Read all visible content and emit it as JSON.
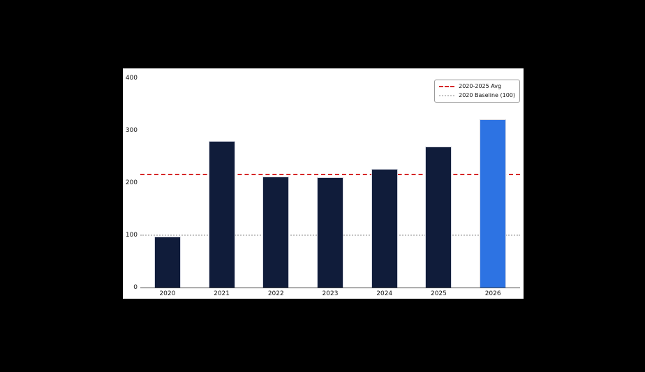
{
  "canvas": {
    "background_color": "#000000",
    "figure_background_color": "#ffffff"
  },
  "chart_data": {
    "type": "bar",
    "title": "",
    "xlabel": "",
    "ylabel": "",
    "categories": [
      "2020",
      "2021",
      "2022",
      "2023",
      "2024",
      "2025",
      "2026"
    ],
    "values": [
      98,
      280,
      212,
      211,
      227,
      270,
      322
    ],
    "bar_color_default": "#101c3a",
    "bar_color_highlight": "#2d73e3",
    "bar_edge_color": "#d6d8e2",
    "highlight_index": 6,
    "ylim": [
      0,
      400
    ],
    "yticks": [
      0,
      100,
      200,
      300,
      400
    ],
    "grid": false,
    "legend_position": "upper right",
    "reference_lines": [
      {
        "label": "2020-2025 Avg",
        "value": 216.3,
        "style": "dashed",
        "color": "#d62728",
        "thickness": 2
      },
      {
        "label": "2020 Baseline (100)",
        "value": 100,
        "style": "dotted",
        "color": "#c4c4c4",
        "thickness": 2
      }
    ]
  }
}
